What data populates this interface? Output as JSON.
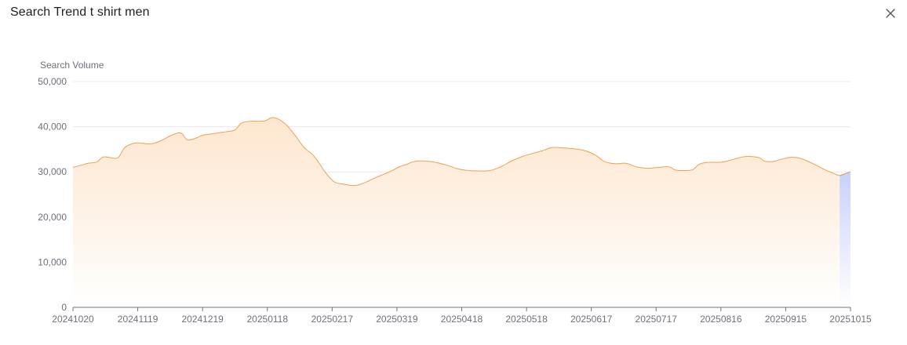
{
  "modal": {
    "title": "Search Trend t shirt men",
    "close_icon": "close-icon"
  },
  "colors": {
    "line": "#f0a050",
    "area_top": "#fde5cc",
    "area_bottom": "#ffffff",
    "grid": "#e6e8ee",
    "axis": "#6e7079",
    "tick_text": "#6e7079",
    "highlight": "#c9d0fb"
  },
  "chart_data": {
    "type": "area",
    "ylabel": "Search Volume",
    "ylim": [
      0,
      50000
    ],
    "yticks": [
      "0",
      "10,000",
      "20,000",
      "30,000",
      "40,000",
      "50,000"
    ],
    "ytick_values": [
      0,
      10000,
      20000,
      30000,
      40000,
      50000
    ],
    "xticks": [
      "20241020",
      "20241119",
      "20241219",
      "20250118",
      "20250217",
      "20250319",
      "20250418",
      "20250518",
      "20250617",
      "20250717",
      "20250816",
      "20250915",
      "20251015"
    ],
    "x_start": "20241020",
    "x_end": "20251015",
    "series": [
      {
        "values": [
          [
            "20241020",
            31000
          ],
          [
            "20241024",
            31500
          ],
          [
            "20241027",
            31900
          ],
          [
            "20241031",
            32200
          ],
          [
            "20241103",
            33300
          ],
          [
            "20241107",
            33100
          ],
          [
            "20241110",
            33200
          ],
          [
            "20241113",
            35400
          ],
          [
            "20241117",
            36300
          ],
          [
            "20241120",
            36400
          ],
          [
            "20241124",
            36200
          ],
          [
            "20241127",
            36400
          ],
          [
            "20241201",
            37200
          ],
          [
            "20241205",
            38200
          ],
          [
            "20241209",
            38600
          ],
          [
            "20241212",
            37100
          ],
          [
            "20241216",
            37500
          ],
          [
            "20241219",
            38100
          ],
          [
            "20241223",
            38400
          ],
          [
            "20241227",
            38700
          ],
          [
            "20241230",
            38900
          ],
          [
            "20250103",
            39300
          ],
          [
            "20250106",
            40800
          ],
          [
            "20250110",
            41200
          ],
          [
            "20250114",
            41200
          ],
          [
            "20250117",
            41300
          ],
          [
            "20250120",
            42000
          ],
          [
            "20250123",
            41700
          ],
          [
            "20250127",
            40300
          ],
          [
            "20250131",
            38000
          ],
          [
            "20250204",
            35400
          ],
          [
            "20250208",
            33800
          ],
          [
            "20250211",
            31900
          ],
          [
            "20250214",
            29800
          ],
          [
            "20250218",
            27800
          ],
          [
            "20250222",
            27300
          ],
          [
            "20250226",
            27000
          ],
          [
            "20250301",
            27100
          ],
          [
            "20250305",
            27800
          ],
          [
            "20250308",
            28500
          ],
          [
            "20250312",
            29300
          ],
          [
            "20250316",
            30100
          ],
          [
            "20250320",
            31100
          ],
          [
            "20250323",
            31600
          ],
          [
            "20250327",
            32300
          ],
          [
            "20250401",
            32400
          ],
          [
            "20250406",
            32100
          ],
          [
            "20250411",
            31500
          ],
          [
            "20250416",
            30700
          ],
          [
            "20250421",
            30300
          ],
          [
            "20250426",
            30200
          ],
          [
            "20250501",
            30300
          ],
          [
            "20250506",
            31100
          ],
          [
            "20250511",
            32400
          ],
          [
            "20250516",
            33400
          ],
          [
            "20250521",
            34100
          ],
          [
            "20250526",
            34800
          ],
          [
            "20250530",
            35400
          ],
          [
            "20250604",
            35300
          ],
          [
            "20250609",
            35100
          ],
          [
            "20250614",
            34700
          ],
          [
            "20250619",
            33700
          ],
          [
            "20250623",
            32300
          ],
          [
            "20250628",
            31800
          ],
          [
            "20250703",
            31900
          ],
          [
            "20250708",
            31100
          ],
          [
            "20250713",
            30800
          ],
          [
            "20250718",
            31000
          ],
          [
            "20250723",
            31100
          ],
          [
            "20250726",
            30400
          ],
          [
            "20250730",
            30300
          ],
          [
            "20250803",
            30500
          ],
          [
            "20250806",
            31700
          ],
          [
            "20250810",
            32100
          ],
          [
            "20250815",
            32100
          ],
          [
            "20250818",
            32300
          ],
          [
            "20250822",
            32800
          ],
          [
            "20250826",
            33300
          ],
          [
            "20250830",
            33400
          ],
          [
            "20250903",
            33100
          ],
          [
            "20250905",
            32400
          ],
          [
            "20250909",
            32300
          ],
          [
            "20250913",
            32800
          ],
          [
            "20250917",
            33200
          ],
          [
            "20250921",
            33100
          ],
          [
            "20250925",
            32400
          ],
          [
            "20250929",
            31500
          ],
          [
            "20251003",
            30500
          ],
          [
            "20251007",
            29700
          ],
          [
            "20251010",
            29200
          ],
          [
            "20251013",
            29700
          ],
          [
            "20251015",
            30000
          ]
        ]
      }
    ],
    "highlight_range": [
      "20251010",
      "20251015"
    ],
    "grid": true,
    "legend": "none"
  }
}
